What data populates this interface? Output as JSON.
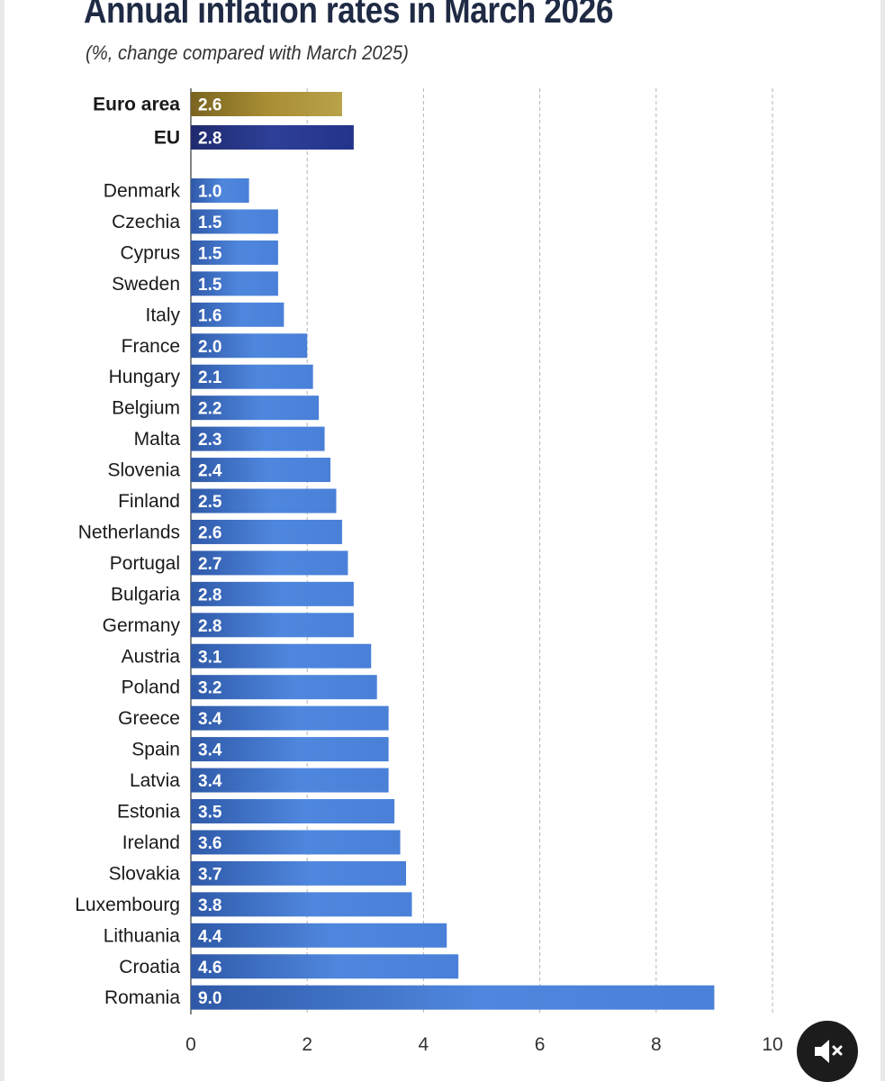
{
  "colors": {
    "aggregate_euro": "#a68a2e",
    "aggregate_eu": "#2b3a8c",
    "country": "#4a7fd6",
    "title": "#1f2a44",
    "gridline": "#bbbbbb"
  },
  "mute_button": {
    "icon": "speaker-muted-icon"
  },
  "chart_data": {
    "type": "bar",
    "orientation": "horizontal",
    "title": "Annual inflation rates in March 2026",
    "subtitle": "(%, change compared with March 2025)",
    "xlabel": "",
    "ylabel": "",
    "xlim": [
      0,
      10
    ],
    "x_ticks": [
      0,
      2,
      4,
      6,
      8,
      10
    ],
    "grid": true,
    "legend": "none",
    "aggregates": [
      {
        "category": "Euro area",
        "value": 2.6,
        "label": "2.6"
      },
      {
        "category": "EU",
        "value": 2.8,
        "label": "2.8"
      }
    ],
    "countries": [
      {
        "category": "Denmark",
        "value": 1.0,
        "label": "1.0"
      },
      {
        "category": "Czechia",
        "value": 1.5,
        "label": "1.5"
      },
      {
        "category": "Cyprus",
        "value": 1.5,
        "label": "1.5"
      },
      {
        "category": "Sweden",
        "value": 1.5,
        "label": "1.5"
      },
      {
        "category": "Italy",
        "value": 1.6,
        "label": "1.6"
      },
      {
        "category": "France",
        "value": 2.0,
        "label": "2.0"
      },
      {
        "category": "Hungary",
        "value": 2.1,
        "label": "2.1"
      },
      {
        "category": "Belgium",
        "value": 2.2,
        "label": "2.2"
      },
      {
        "category": "Malta",
        "value": 2.3,
        "label": "2.3"
      },
      {
        "category": "Slovenia",
        "value": 2.4,
        "label": "2.4"
      },
      {
        "category": "Finland",
        "value": 2.5,
        "label": "2.5"
      },
      {
        "category": "Netherlands",
        "value": 2.6,
        "label": "2.6"
      },
      {
        "category": "Portugal",
        "value": 2.7,
        "label": "2.7"
      },
      {
        "category": "Bulgaria",
        "value": 2.8,
        "label": "2.8"
      },
      {
        "category": "Germany",
        "value": 2.8,
        "label": "2.8"
      },
      {
        "category": "Austria",
        "value": 3.1,
        "label": "3.1"
      },
      {
        "category": "Poland",
        "value": 3.2,
        "label": "3.2"
      },
      {
        "category": "Greece",
        "value": 3.4,
        "label": "3.4"
      },
      {
        "category": "Spain",
        "value": 3.4,
        "label": "3.4"
      },
      {
        "category": "Latvia",
        "value": 3.4,
        "label": "3.4"
      },
      {
        "category": "Estonia",
        "value": 3.5,
        "label": "3.5"
      },
      {
        "category": "Ireland",
        "value": 3.6,
        "label": "3.6"
      },
      {
        "category": "Slovakia",
        "value": 3.7,
        "label": "3.7"
      },
      {
        "category": "Luxembourg",
        "value": 3.8,
        "label": "3.8"
      },
      {
        "category": "Lithuania",
        "value": 4.4,
        "label": "4.4"
      },
      {
        "category": "Croatia",
        "value": 4.6,
        "label": "4.6"
      },
      {
        "category": "Romania",
        "value": 9.0,
        "label": "9.0"
      }
    ]
  }
}
